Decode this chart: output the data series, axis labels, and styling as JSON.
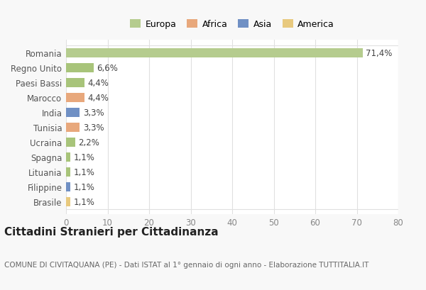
{
  "categories": [
    "Brasile",
    "Filippine",
    "Lituania",
    "Spagna",
    "Ucraina",
    "Tunisia",
    "India",
    "Marocco",
    "Paesi Bassi",
    "Regno Unito",
    "Romania"
  ],
  "values": [
    1.1,
    1.1,
    1.1,
    1.1,
    2.2,
    3.3,
    3.3,
    4.4,
    4.4,
    6.6,
    71.4
  ],
  "labels": [
    "1,1%",
    "1,1%",
    "1,1%",
    "1,1%",
    "2,2%",
    "3,3%",
    "3,3%",
    "4,4%",
    "4,4%",
    "6,6%",
    "71,4%"
  ],
  "colors": [
    "#e8c97e",
    "#7090c4",
    "#a8c47a",
    "#a8c47a",
    "#a8c47a",
    "#e8a87c",
    "#7090c4",
    "#e8a87c",
    "#a8c47a",
    "#a8c47a",
    "#b5cc8e"
  ],
  "legend_labels": [
    "Europa",
    "Africa",
    "Asia",
    "America"
  ],
  "legend_colors": [
    "#b5cc8e",
    "#e8a87c",
    "#7090c4",
    "#e8c97e"
  ],
  "title": "Cittadini Stranieri per Cittadinanza",
  "subtitle": "COMUNE DI CIVITAQUANA (PE) - Dati ISTAT al 1° gennaio di ogni anno - Elaborazione TUTTITALIA.IT",
  "xlim": [
    0,
    80
  ],
  "xticks": [
    0,
    10,
    20,
    30,
    40,
    50,
    60,
    70,
    80
  ],
  "bg_color": "#f8f8f8",
  "plot_bg_color": "#ffffff",
  "grid_color": "#e0e0e0",
  "bar_height": 0.65,
  "title_fontsize": 11,
  "subtitle_fontsize": 7.5,
  "tick_fontsize": 8.5,
  "label_fontsize": 8.5,
  "legend_fontsize": 9
}
